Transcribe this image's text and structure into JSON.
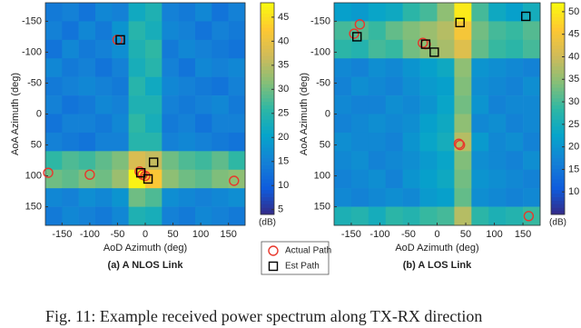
{
  "figure_caption": "Fig. 11: Example received power spectrum along TX-RX direction",
  "chart_data": [
    {
      "type": "heatmap",
      "caption": "(a) A NLOS Link",
      "x_label": "AoD Azimuth (deg)",
      "y_label": "AoA Azimuth (deg)",
      "colorbar_label": "(dB)",
      "x": [
        -165,
        -135,
        -105,
        -75,
        -45,
        -15,
        15,
        45,
        75,
        105,
        135,
        165
      ],
      "y": [
        -165,
        -135,
        -105,
        -75,
        -45,
        -15,
        15,
        45,
        75,
        105,
        135,
        165
      ],
      "z": [
        [
          14,
          15,
          13,
          16,
          15,
          22,
          24,
          15,
          14,
          16,
          13,
          15
        ],
        [
          15,
          13,
          16,
          14,
          18,
          25,
          23,
          16,
          15,
          13,
          15,
          14
        ],
        [
          13,
          16,
          14,
          15,
          17,
          24,
          26,
          14,
          16,
          15,
          14,
          13
        ],
        [
          16,
          14,
          15,
          13,
          15,
          23,
          25,
          15,
          13,
          16,
          15,
          16
        ],
        [
          14,
          15,
          16,
          15,
          14,
          25,
          22,
          16,
          15,
          14,
          13,
          15
        ],
        [
          15,
          13,
          14,
          16,
          15,
          24,
          24,
          15,
          14,
          15,
          16,
          14
        ],
        [
          13,
          15,
          15,
          14,
          16,
          26,
          23,
          14,
          15,
          13,
          15,
          15
        ],
        [
          15,
          14,
          13,
          15,
          15,
          25,
          25,
          15,
          16,
          15,
          14,
          13
        ],
        [
          26,
          28,
          27,
          29,
          31,
          38,
          36,
          30,
          28,
          27,
          29,
          26
        ],
        [
          30,
          29,
          31,
          30,
          33,
          47,
          42,
          32,
          30,
          29,
          31,
          32
        ],
        [
          16,
          15,
          17,
          16,
          18,
          30,
          28,
          17,
          16,
          15,
          16,
          17
        ],
        [
          14,
          16,
          15,
          14,
          16,
          24,
          23,
          15,
          14,
          16,
          15,
          14
        ]
      ],
      "xlim": [
        -180,
        180
      ],
      "ylim": [
        -180,
        180
      ],
      "y_reversed": true,
      "xticks": [
        -150,
        -100,
        -50,
        0,
        50,
        100,
        150
      ],
      "yticks": [
        -150,
        -100,
        -50,
        0,
        50,
        100,
        150
      ],
      "clim": [
        4,
        48
      ],
      "cticks": [
        5,
        10,
        15,
        20,
        25,
        30,
        35,
        40,
        45
      ],
      "series": [
        {
          "name": "Actual Path",
          "marker": "circle",
          "color": "#e8372c",
          "x": [
            -50,
            -175,
            -100,
            -10,
            -5,
            0,
            160
          ],
          "y": [
            -120,
            95,
            98,
            93,
            98,
            100,
            108
          ]
        },
        {
          "name": "Est Path",
          "marker": "square",
          "color": "#000000",
          "x": [
            -45,
            15,
            -8,
            5
          ],
          "y": [
            -120,
            78,
            95,
            105
          ]
        }
      ]
    },
    {
      "type": "heatmap",
      "caption": "(b) A LOS Link",
      "x_label": "AoD Azimuth (deg)",
      "y_label": "AoA Azimuth (deg)",
      "colorbar_label": "(dB)",
      "x": [
        -165,
        -135,
        -105,
        -75,
        -45,
        -15,
        15,
        45,
        75,
        105,
        135,
        165
      ],
      "y": [
        -165,
        -135,
        -105,
        -75,
        -45,
        -15,
        15,
        45,
        75,
        105,
        135,
        165
      ],
      "z": [
        [
          22,
          21,
          23,
          24,
          28,
          30,
          35,
          50,
          30,
          24,
          22,
          25
        ],
        [
          30,
          31,
          29,
          32,
          34,
          36,
          38,
          45,
          33,
          30,
          29,
          31
        ],
        [
          28,
          27,
          30,
          29,
          33,
          35,
          37,
          42,
          32,
          29,
          28,
          30
        ],
        [
          18,
          17,
          19,
          18,
          20,
          22,
          24,
          35,
          20,
          19,
          18,
          17
        ],
        [
          17,
          19,
          18,
          17,
          19,
          21,
          22,
          34,
          19,
          18,
          17,
          19
        ],
        [
          18,
          17,
          17,
          19,
          18,
          20,
          23,
          33,
          20,
          17,
          18,
          18
        ],
        [
          17,
          18,
          19,
          18,
          19,
          22,
          24,
          35,
          18,
          19,
          17,
          18
        ],
        [
          19,
          18,
          18,
          17,
          20,
          23,
          25,
          38,
          21,
          18,
          19,
          17
        ],
        [
          18,
          19,
          17,
          18,
          19,
          21,
          23,
          34,
          19,
          18,
          17,
          19
        ],
        [
          17,
          18,
          19,
          17,
          20,
          22,
          24,
          33,
          20,
          19,
          18,
          17
        ],
        [
          18,
          17,
          18,
          19,
          18,
          21,
          22,
          32,
          19,
          18,
          17,
          18
        ],
        [
          26,
          27,
          25,
          28,
          27,
          29,
          30,
          38,
          28,
          26,
          27,
          29
        ]
      ],
      "xlim": [
        -180,
        180
      ],
      "ylim": [
        -180,
        180
      ],
      "y_reversed": true,
      "xticks": [
        -150,
        -100,
        -50,
        0,
        50,
        100,
        150
      ],
      "yticks": [
        -150,
        -100,
        -50,
        0,
        50,
        100,
        150
      ],
      "clim": [
        5,
        52
      ],
      "cticks": [
        10,
        15,
        20,
        25,
        30,
        35,
        40,
        45,
        50
      ],
      "series": [
        {
          "marker": "circle",
          "color": "#e8372c",
          "x": [
            -135,
            -145,
            -25,
            -20,
            40,
            38,
            160
          ],
          "y": [
            -145,
            -130,
            -115,
            -113,
            50,
            48,
            165
          ]
        },
        {
          "marker": "square",
          "color": "#000000",
          "x": [
            -140,
            -20,
            -5,
            40,
            155
          ],
          "y": [
            -125,
            -113,
            -100,
            -148,
            -158
          ]
        }
      ]
    }
  ]
}
